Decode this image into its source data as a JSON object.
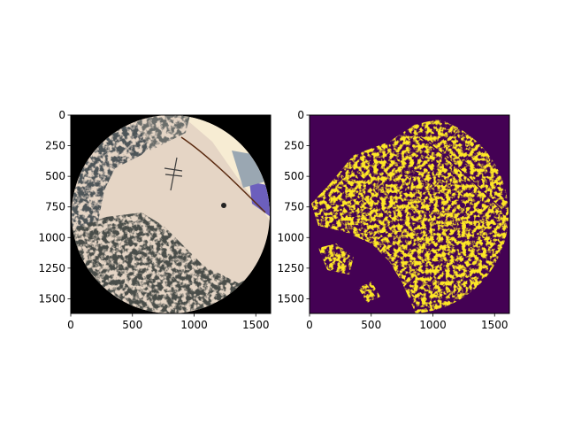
{
  "chart_data": [
    {
      "type": "heatmap",
      "name": "rgb-image",
      "title": "",
      "xlabel": "",
      "ylabel": "",
      "xlim": [
        0,
        1620
      ],
      "ylim": [
        1620,
        0
      ],
      "x_ticks": [
        0,
        500,
        1000,
        1500
      ],
      "y_ticks": [
        0,
        250,
        500,
        750,
        1000,
        1250,
        1500
      ],
      "content": "circular fisheye photograph of sky and trees on black background",
      "circle": {
        "cx": 810,
        "cy": 810,
        "r": 810
      },
      "colors": {
        "background": "#000000",
        "sky": "#e5d5c5",
        "trees": "#5a5a55",
        "blue_sky": "#7e9cbc"
      }
    },
    {
      "type": "heatmap",
      "name": "binary-mask",
      "title": "",
      "xlabel": "",
      "ylabel": "",
      "xlim": [
        0,
        1620
      ],
      "ylim": [
        1620,
        0
      ],
      "x_ticks": [
        0,
        500,
        1000,
        1500
      ],
      "y_ticks": [
        0,
        250,
        500,
        750,
        1000,
        1250,
        1500
      ],
      "colormap": "viridis",
      "value_range": [
        0,
        1
      ],
      "colors": {
        "low": "#440154",
        "high": "#fde725"
      }
    }
  ]
}
